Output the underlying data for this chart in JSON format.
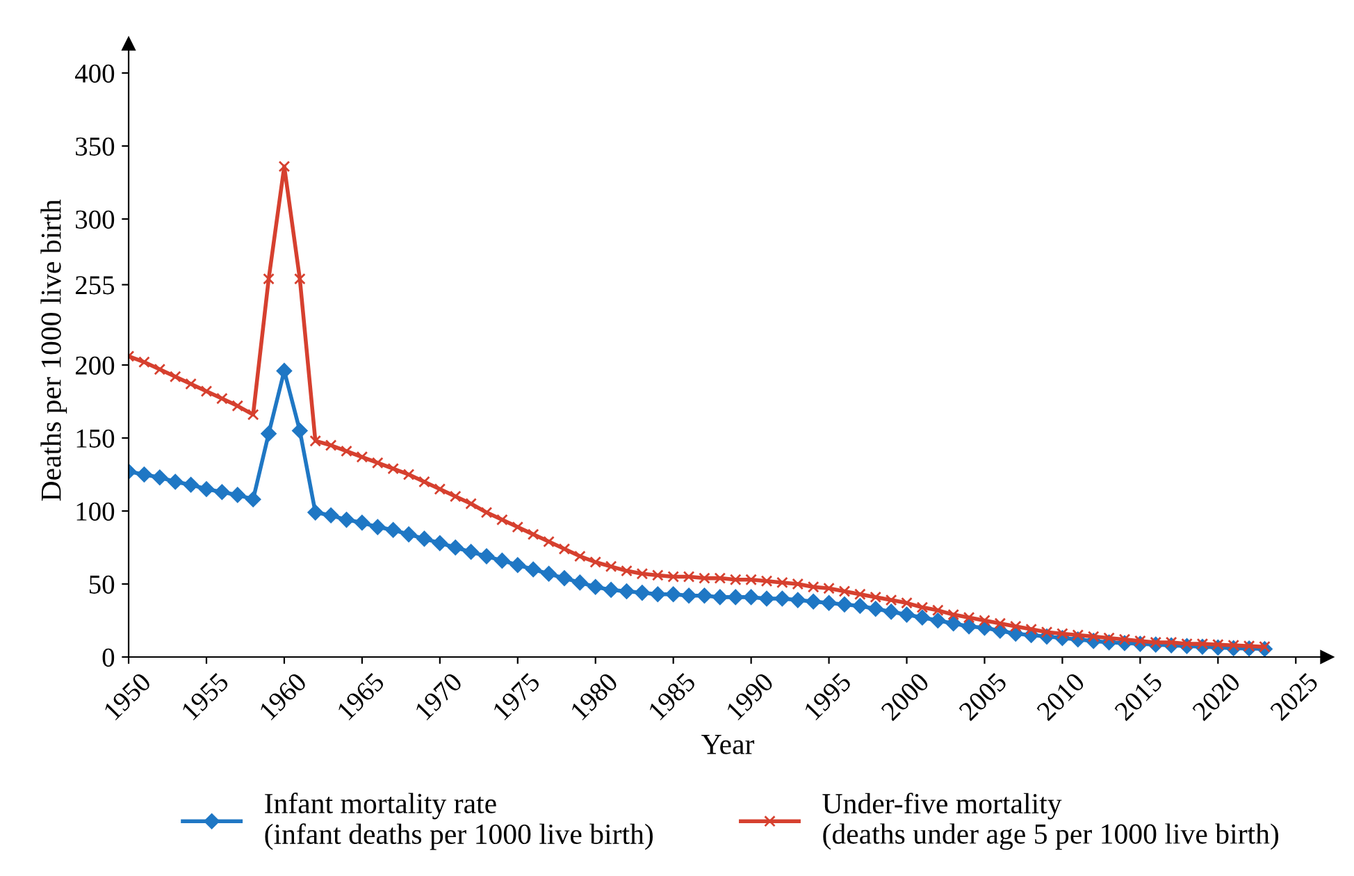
{
  "chart_data": {
    "type": "line",
    "xlabel": "Year",
    "ylabel": "Deaths per 1000 live birth",
    "x": [
      1950,
      1951,
      1952,
      1953,
      1954,
      1955,
      1956,
      1957,
      1958,
      1959,
      1960,
      1961,
      1962,
      1963,
      1964,
      1965,
      1966,
      1967,
      1968,
      1969,
      1970,
      1971,
      1972,
      1973,
      1974,
      1975,
      1976,
      1977,
      1978,
      1979,
      1980,
      1981,
      1982,
      1983,
      1984,
      1985,
      1986,
      1987,
      1988,
      1989,
      1990,
      1991,
      1992,
      1993,
      1994,
      1995,
      1996,
      1997,
      1998,
      1999,
      2000,
      2001,
      2002,
      2003,
      2004,
      2005,
      2006,
      2007,
      2008,
      2009,
      2010,
      2011,
      2012,
      2013,
      2014,
      2015,
      2016,
      2017,
      2018,
      2019,
      2020,
      2021,
      2022,
      2023
    ],
    "series": [
      {
        "name": "Infant mortality rate\n(infant deaths per 1000 live birth)",
        "color": "#1f77c4",
        "marker": "diamond",
        "values": [
          127,
          125,
          123,
          120,
          118,
          115,
          113,
          111,
          108,
          153,
          196,
          155,
          99,
          97,
          94,
          92,
          89,
          87,
          84,
          81,
          78,
          75,
          72,
          69,
          66,
          63,
          60,
          57,
          54,
          51,
          48,
          46,
          45,
          44,
          43,
          43,
          42,
          42,
          41,
          41,
          41,
          40,
          40,
          39,
          38,
          37,
          36,
          35,
          33,
          31,
          29,
          27,
          25,
          23,
          21,
          20,
          18,
          16,
          15,
          14,
          13,
          12,
          11,
          10,
          9.5,
          9,
          8.5,
          8,
          7.5,
          7,
          6.5,
          6,
          5.8,
          5.5
        ]
      },
      {
        "name": "Under-five mortality\n(deaths under age 5 per 1000 live birth)",
        "color": "#d6402f",
        "marker": "cross",
        "values": [
          206,
          202,
          197,
          192,
          187,
          182,
          177,
          172,
          166,
          259,
          336,
          259,
          148,
          145,
          141,
          137,
          133,
          129,
          125,
          120,
          115,
          110,
          105,
          99,
          94,
          89,
          84,
          79,
          74,
          69,
          65,
          62,
          59,
          57,
          56,
          55,
          55,
          54,
          54,
          53,
          53,
          52,
          51,
          50,
          48,
          47,
          45,
          43,
          41,
          39,
          37,
          34,
          32,
          29,
          27,
          25,
          23,
          21,
          19,
          17,
          16,
          15,
          14,
          13,
          12,
          11,
          10,
          10,
          9,
          9,
          8.5,
          8,
          7.5,
          7
        ]
      }
    ],
    "xlim": [
      1950,
      2027
    ],
    "xticks": [
      1950,
      1955,
      1960,
      1965,
      1970,
      1975,
      1980,
      1985,
      1990,
      1995,
      2000,
      2005,
      2010,
      2015,
      2020,
      2025
    ],
    "ylim": [
      0,
      420
    ],
    "yticks": [
      0,
      50,
      100,
      150,
      200,
      255,
      300,
      350,
      400
    ],
    "grid": false,
    "legend": "bottom",
    "line_style": "solid"
  }
}
